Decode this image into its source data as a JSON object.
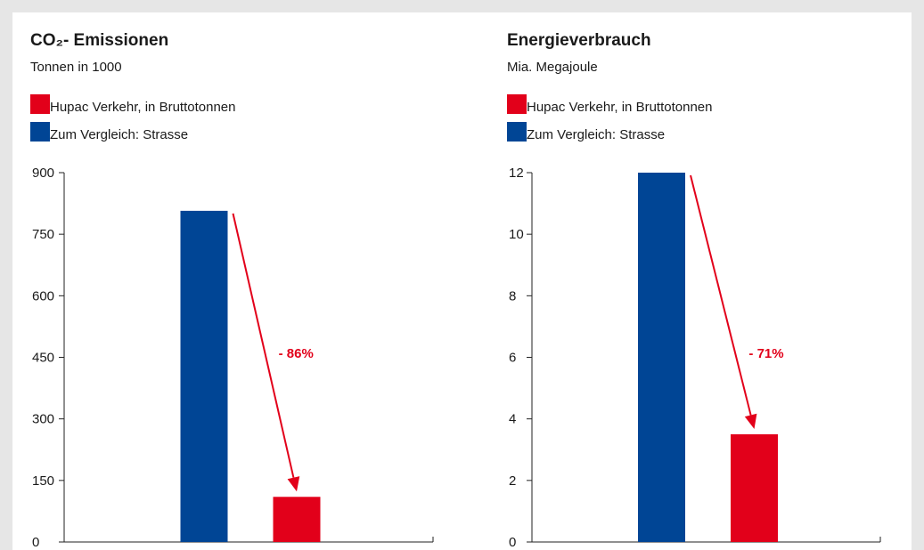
{
  "chart_data": [
    {
      "type": "bar",
      "title": "CO₂- Emissionen",
      "subtitle": "Tonnen in 1000",
      "categories": [
        null
      ],
      "series": [
        {
          "name": "Hupac Verkehr, in Bruttotonnen",
          "color": "#e2001a",
          "values": [
            110
          ]
        },
        {
          "name": "Zum Vergleich: Strasse",
          "color": "#004595",
          "values": [
            807
          ]
        }
      ],
      "annotation": "- 86%",
      "ylim": [
        0,
        900
      ],
      "yticks": [
        0,
        150,
        300,
        450,
        600,
        750,
        900
      ]
    },
    {
      "type": "bar",
      "title": "Energieverbrauch",
      "subtitle": "Mia. Megajoule",
      "categories": [
        null
      ],
      "series": [
        {
          "name": "Hupac Verkehr, in Bruttotonnen",
          "color": "#e2001a",
          "values": [
            3.5
          ]
        },
        {
          "name": "Zum Vergleich: Strasse",
          "color": "#004595",
          "values": [
            12
          ]
        }
      ],
      "annotation": "- 71%",
      "ylim": [
        0,
        12
      ],
      "yticks": [
        0,
        2,
        4,
        6,
        8,
        10,
        12
      ]
    }
  ]
}
